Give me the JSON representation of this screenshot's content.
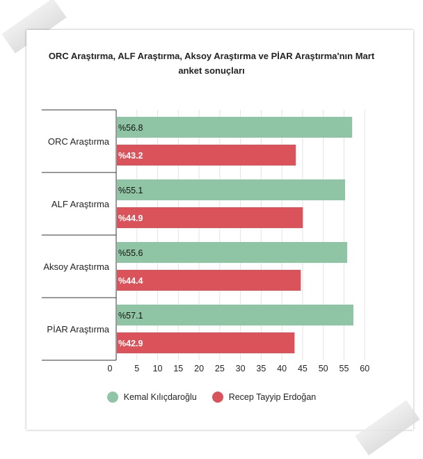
{
  "chart_data": {
    "type": "bar",
    "orientation": "horizontal",
    "title": "ORC Araştırma, ALF Araştırma, Aksoy Araştırma ve PİAR Araştırma'nın Mart anket sonuçları",
    "title_lines": [
      "ORC Araştırma, ALF Araştırma, Aksoy Araştırma ve PİAR Araştırma'nın Mart",
      "anket sonuçları"
    ],
    "categories": [
      "ORC Araştırma",
      "ALF Araştırma",
      "Aksoy Araştırma",
      "PİAR Araştırma"
    ],
    "series": [
      {
        "name": "Kemal Kılıçdaroğlu",
        "color": "#8fc5a4",
        "values": [
          56.8,
          55.1,
          55.6,
          57.1
        ],
        "labels": [
          "%56.8",
          "%55.1",
          "%55.6",
          "%57.1"
        ]
      },
      {
        "name": "Recep Tayyip Erdoğan",
        "color": "#db535a",
        "values": [
          43.2,
          44.9,
          44.4,
          42.9
        ],
        "labels": [
          "%43.2",
          "%44.9",
          "%44.4",
          "%42.9"
        ]
      }
    ],
    "xlim": [
      0,
      60
    ],
    "xticks": [
      "0",
      "5",
      "10",
      "15",
      "20",
      "25",
      "30",
      "35",
      "40",
      "45",
      "50",
      "55",
      "60"
    ],
    "grid": true,
    "legend_position": "bottom"
  }
}
